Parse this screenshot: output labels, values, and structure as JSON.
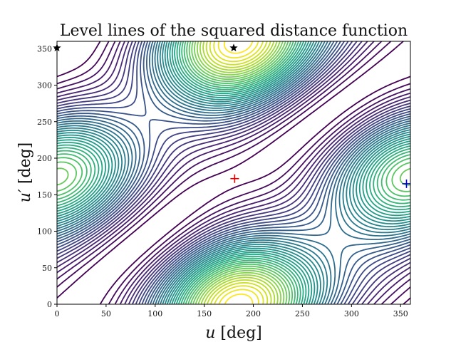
{
  "chart_data": {
    "type": "contour",
    "title": "Level lines of the squared distance function",
    "xlabel": "u [deg]",
    "ylabel": "u′ [deg]",
    "xlim": [
      0,
      360
    ],
    "ylim": [
      0,
      360
    ],
    "xticks": [
      0,
      50,
      100,
      150,
      200,
      250,
      300,
      350
    ],
    "yticks": [
      0,
      50,
      100,
      150,
      200,
      250,
      300,
      350
    ],
    "grid": false,
    "colormap": "viridis",
    "contour_levels": 40,
    "field": {
      "description": "squared distance between two points on ellipses parameterised by u and u′",
      "peak_at": [
        181,
        172
      ],
      "ridge_direction_deg": 45
    },
    "markers": [
      {
        "name": "maximum",
        "symbol": "+",
        "color": "#e00000",
        "x": 181,
        "y": 172
      },
      {
        "name": "minimum",
        "symbol": "+",
        "color": "#0000e0",
        "x": 356,
        "y": 165
      },
      {
        "name": "star-1",
        "symbol": "star",
        "color": "#000000",
        "x": 0,
        "y": 351
      },
      {
        "name": "star-2",
        "symbol": "star",
        "color": "#000000",
        "x": 180,
        "y": 351
      }
    ]
  }
}
